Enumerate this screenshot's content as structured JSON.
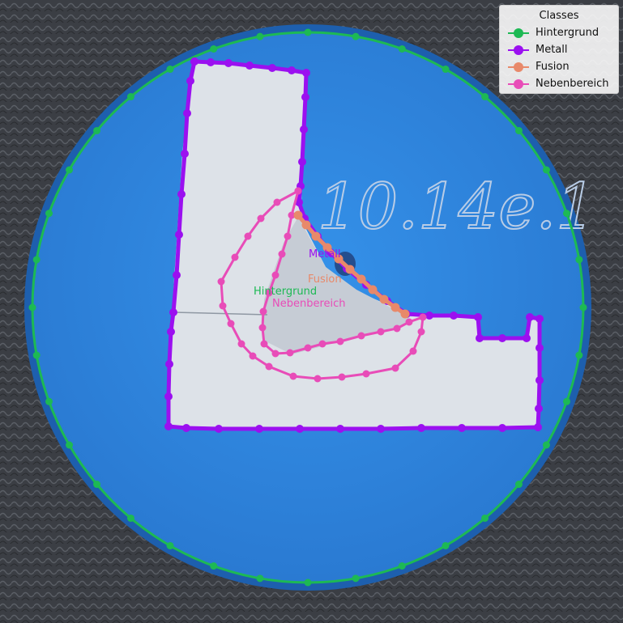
{
  "legend": {
    "title": "Classes",
    "items": [
      {
        "label": "Hintergrund",
        "color": "#1db954"
      },
      {
        "label": "Metall",
        "color": "#9b10f0"
      },
      {
        "label": "Fusion",
        "color": "#e8896a"
      },
      {
        "label": "Nebenbereich",
        "color": "#e84cb8"
      }
    ]
  },
  "labels": {
    "metall": "Metall",
    "fusion": "Fusion",
    "hintergrund": "Hintergrund",
    "nebenbereich": "Nebenbereich"
  },
  "sample_text": "10.14e.1",
  "colors": {
    "disk": "#2f86e0",
    "disk_edge": "#1e5fb0",
    "metal": "#dfe4ea",
    "weld": "#c9ced6",
    "background": "#3a3d42"
  }
}
